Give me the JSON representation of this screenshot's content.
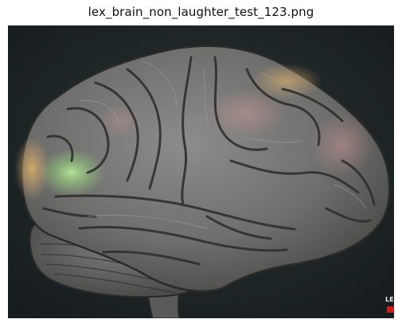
{
  "title": "lex_brain_non_laughter_test_123.png",
  "image": {
    "subject": "brain",
    "corner_logo_text": "LE",
    "colors": {
      "background": "#1f2628",
      "brain_base": "#777777",
      "highlight_green": "#9ccf7a",
      "highlight_orange": "#d9a860",
      "highlight_pink": "#b98a8a",
      "logo_red": "#c81e1e"
    }
  }
}
